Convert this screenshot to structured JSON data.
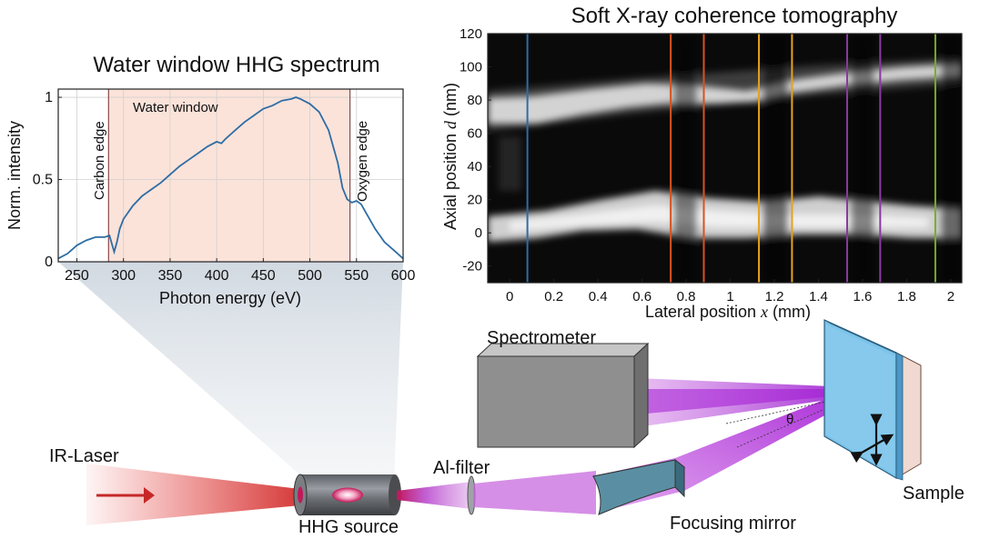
{
  "spectrum": {
    "title": "Water window HHG spectrum",
    "xlabel": "Photon energy (eV)",
    "ylabel": "Norm. intensity",
    "xticks": [
      "250",
      "300",
      "350",
      "400",
      "450",
      "500",
      "550",
      "600"
    ],
    "yticks": [
      "0",
      "0.5",
      "1"
    ],
    "carbon_edge_label": "Carbon edge",
    "oxygen_edge_label": "Oxygen edge",
    "water_window_label": "Water window",
    "line_color": "#2e6da4",
    "window_color": "#fbe3da"
  },
  "tomography": {
    "title": "Soft X-ray coherence tomography",
    "xlabel_main": "Lateral position ",
    "xlabel_var": "x",
    "xlabel_unit": " (mm)",
    "ylabel_main": "Axial position ",
    "ylabel_var": "d",
    "ylabel_unit": " (nm)",
    "xticks": [
      "0",
      "0.2",
      "0.4",
      "0.6",
      "0.8",
      "1",
      "1.2",
      "1.4",
      "1.6",
      "1.8",
      "2"
    ],
    "yticks": [
      "120",
      "100",
      "80",
      "60",
      "40",
      "20",
      "0",
      "-20"
    ]
  },
  "setup": {
    "ir_laser_label": "IR-Laser",
    "hhg_source_label": "HHG source",
    "al_filter_label": "Al-filter",
    "spectrometer_label": "Spectrometer",
    "focusing_mirror_label": "Focusing mirror",
    "sample_label": "Sample",
    "theta_label": "θ"
  },
  "chart_data": [
    {
      "type": "line",
      "title": "Water window HHG spectrum",
      "xlabel": "Photon energy (eV)",
      "ylabel": "Norm. intensity",
      "xlim": [
        230,
        600
      ],
      "ylim": [
        0,
        1.05
      ],
      "grid": true,
      "annotations": [
        "Carbon edge",
        "Water window",
        "Oxygen edge"
      ],
      "edges_eV": [
        284,
        543
      ],
      "series": [
        {
          "x": [
            230,
            240,
            250,
            260,
            270,
            280,
            285,
            288,
            290,
            293,
            296,
            300,
            310,
            320,
            330,
            340,
            350,
            360,
            370,
            380,
            390,
            400,
            405,
            410,
            420,
            430,
            440,
            450,
            460,
            470,
            480,
            485,
            490,
            500,
            510,
            520,
            530,
            535,
            540,
            545,
            550,
            555,
            560,
            570,
            580,
            590,
            600
          ],
          "y": [
            0.02,
            0.05,
            0.1,
            0.13,
            0.15,
            0.15,
            0.16,
            0.1,
            0.06,
            0.12,
            0.2,
            0.26,
            0.34,
            0.4,
            0.44,
            0.48,
            0.53,
            0.58,
            0.62,
            0.66,
            0.7,
            0.73,
            0.72,
            0.75,
            0.8,
            0.85,
            0.89,
            0.93,
            0.95,
            0.98,
            0.99,
            1.0,
            0.99,
            0.96,
            0.91,
            0.8,
            0.6,
            0.45,
            0.38,
            0.36,
            0.37,
            0.35,
            0.3,
            0.2,
            0.12,
            0.07,
            0.02
          ]
        }
      ]
    },
    {
      "type": "heatmap",
      "title": "Soft X-ray coherence tomography",
      "xlabel": "Lateral position x (mm)",
      "ylabel": "Axial position d (nm)",
      "xlim": [
        -0.1,
        2.05
      ],
      "ylim": [
        -30,
        120
      ],
      "colormap": "grayscale",
      "vertical_markers": [
        {
          "x": 0.08,
          "color": "#2e6da4"
        },
        {
          "x": 0.73,
          "color": "#d9531e"
        },
        {
          "x": 0.88,
          "color": "#d9531e"
        },
        {
          "x": 1.13,
          "color": "#e6a21a"
        },
        {
          "x": 1.28,
          "color": "#e6a21a"
        },
        {
          "x": 1.53,
          "color": "#8a3a9e"
        },
        {
          "x": 1.68,
          "color": "#8a3a9e"
        },
        {
          "x": 1.93,
          "color": "#77ac30"
        }
      ]
    }
  ]
}
